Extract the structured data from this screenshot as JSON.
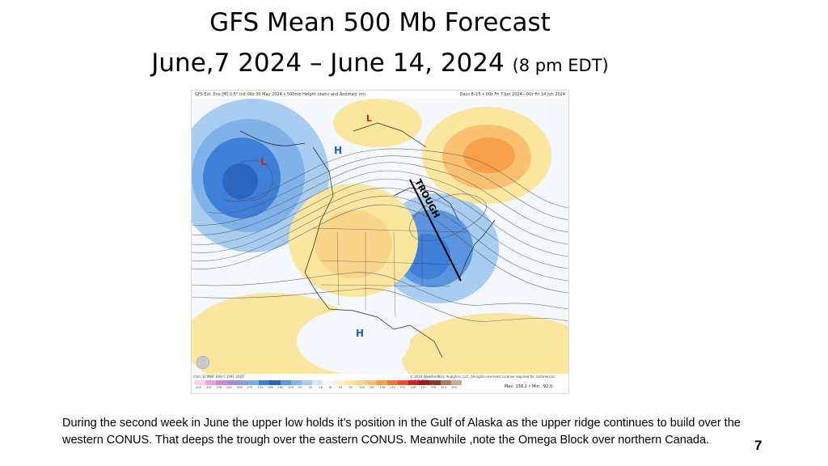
{
  "slide": {
    "title_line1": "GFS Mean 500 Mb Forecast",
    "title_line2": "June,7 2024 – June 14, 2024",
    "title_line2_small": "(8 pm EDT)",
    "description": "During the second week in June the upper low holds it’s position in the Gulf of Alaska as the upper ridge continues to build over the western CONUS.  That deeps the trough over the eastern CONUS. Meanwhile ,note the Omega Block over northern Canada.",
    "page_number": "7"
  },
  "map": {
    "header_left": "GFS Ext. Ens [M] 0.5° Init 00z 30 May 2024 • 500mb Height (dam) and Anomaly (m)",
    "header_right": "Days 8–15 • 00z Fri 7 Jun 2024—00z Fri 14 Jun 2024",
    "clim_text": "Clim: ECMWF ERA-5 1991-2020",
    "copyright": "© 2024 WeatherBELL Analytics, LLC. All rights reserved. License required for commercial distribution.",
    "max_min": "Max: 138.2 • Min: -92.0",
    "low_label": "L",
    "high_label": "H",
    "trough_label": "TROUGH",
    "colorbar_ticks": [
      "-450",
      "-414",
      "-378",
      "-342",
      "-306",
      "-270",
      "-234",
      "-198",
      "-162",
      "-126",
      "-90",
      "-54",
      "-18",
      "18",
      "54",
      "90",
      "126",
      "162",
      "198",
      "234",
      "270",
      "306",
      "342",
      "378",
      "414",
      "450"
    ],
    "colors": {
      "low": "#d22020",
      "high": "#1f5fb3",
      "negative_strong": "#3f7fd8",
      "negative_light": "#a8cdf0",
      "positive_light": "#fbe6a0",
      "positive_strong": "#f6a04a"
    }
  }
}
